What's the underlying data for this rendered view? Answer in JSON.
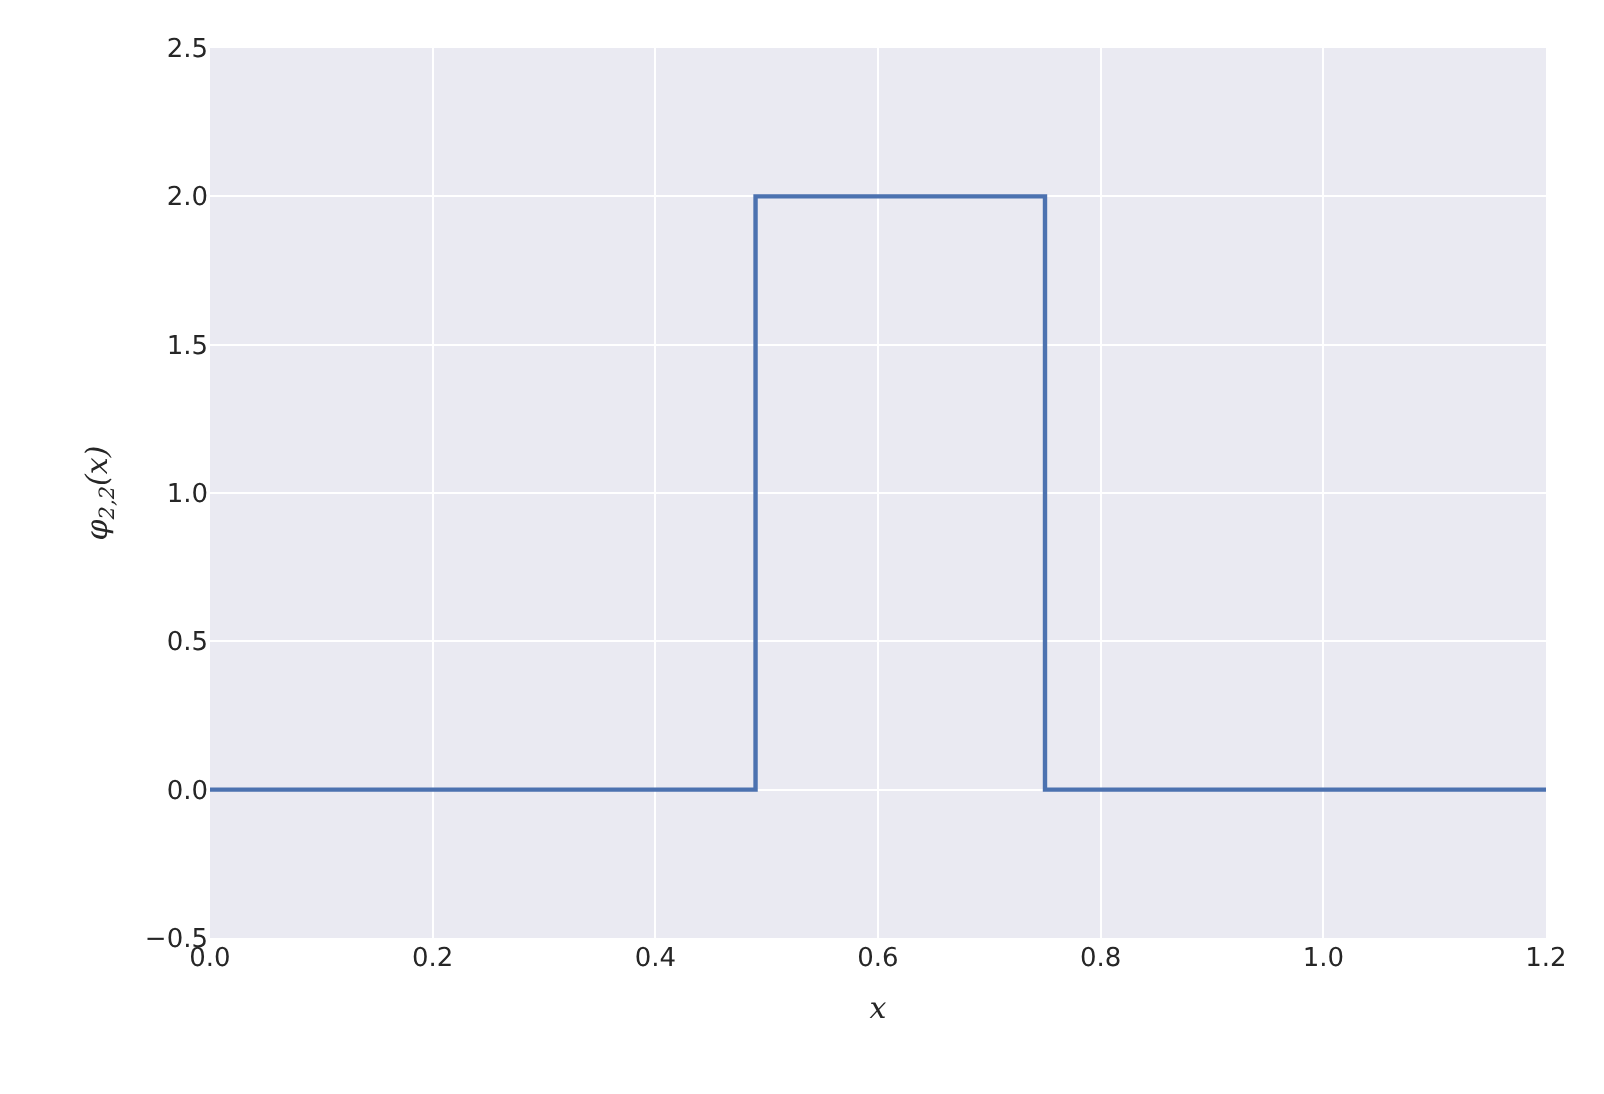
{
  "chart_data": {
    "type": "line",
    "xlabel": "x",
    "ylabel": "φ$_{2,2}$(x)",
    "x": [
      0,
      0.49,
      0.49,
      0.75,
      0.75,
      1.2
    ],
    "series": [
      {
        "color": "#4c72b0",
        "values": [
          0,
          0,
          2,
          2,
          0,
          0
        ]
      }
    ],
    "xlim": [
      0,
      1.2
    ],
    "xticks": [
      {
        "value": 0,
        "label": "0.0"
      },
      0.2,
      0.4,
      0.6,
      0.8,
      {
        "value": 1,
        "label": "1.0"
      },
      1.2
    ],
    "ylim": [
      -0.5,
      2.5
    ],
    "yticks": [
      {
        "value": -0.5,
        "label": "−0.5"
      },
      {
        "value": 0,
        "label": "0.0"
      },
      {
        "value": 0.5,
        "label": "0.5"
      },
      {
        "value": 1,
        "label": "1.0"
      },
      {
        "value": 1.5,
        "label": "1.5"
      },
      {
        "value": 2,
        "label": "2.0"
      },
      {
        "value": 2.5,
        "label": "2.5"
      }
    ],
    "grid": true,
    "marker": "none",
    "line_style": "solid"
  }
}
